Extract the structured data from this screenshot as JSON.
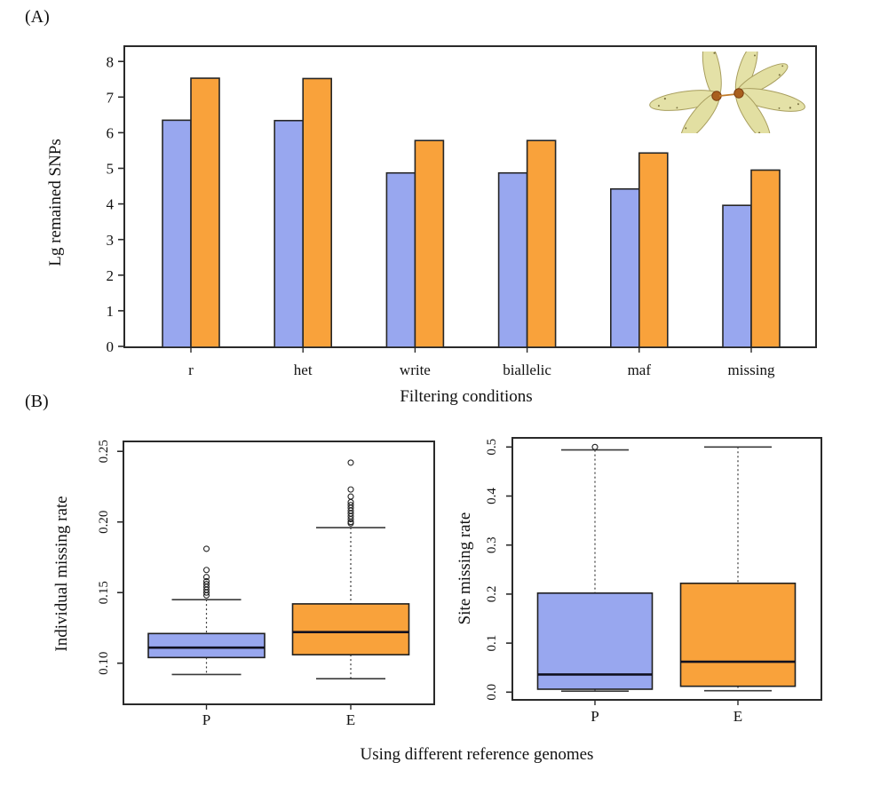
{
  "figure": {
    "panel_a_label": "(A)",
    "panel_b_label": "(B)"
  },
  "colors": {
    "p_series_fill": "#98a7ef",
    "e_series_fill": "#f9a23b",
    "axis_line": "#2a2a2a",
    "text": "#111111"
  },
  "chart_data": [
    {
      "panel": "A",
      "type": "bar",
      "ylabel": "Lg remained SNPs",
      "xlabel": "Filtering conditions",
      "categories": [
        "r",
        "het",
        "write",
        "biallelic",
        "maf",
        "missing"
      ],
      "series": [
        {
          "name": "P",
          "color": "#98a7ef",
          "values": [
            6.35,
            6.34,
            4.87,
            4.87,
            4.42,
            3.96
          ]
        },
        {
          "name": "E",
          "color": "#f9a23b",
          "values": [
            7.53,
            7.52,
            5.78,
            5.78,
            5.43,
            4.95
          ]
        }
      ],
      "ylim": [
        0,
        8.4
      ],
      "yticks": [
        0,
        1,
        2,
        3,
        4,
        5,
        6,
        7,
        8
      ],
      "grid": false,
      "legend": false
    },
    {
      "panel": "B",
      "type": "boxplot",
      "xlabel": "Using different reference genomes",
      "categories": [
        "P",
        "E"
      ],
      "subplots": [
        {
          "ylabel": "Individual missing rate",
          "ytick_labels": [
            "0.10",
            "0.15",
            "0.20",
            "0.25"
          ],
          "ytick_values": [
            0.1,
            0.15,
            0.2,
            0.25
          ],
          "ylim": [
            0.082,
            0.253
          ],
          "boxes": [
            {
              "category": "P",
              "color": "#98a7ef",
              "whisker_low": 0.092,
              "q1": 0.104,
              "median": 0.111,
              "q3": 0.121,
              "whisker_high": 0.145,
              "outliers": [
                0.148,
                0.15,
                0.152,
                0.154,
                0.156,
                0.158,
                0.161,
                0.166,
                0.181
              ]
            },
            {
              "category": "E",
              "color": "#f9a23b",
              "whisker_low": 0.089,
              "q1": 0.106,
              "median": 0.122,
              "q3": 0.142,
              "whisker_high": 0.196,
              "outliers": [
                0.199,
                0.2,
                0.202,
                0.204,
                0.206,
                0.208,
                0.21,
                0.212,
                0.214,
                0.218,
                0.223,
                0.242
              ]
            }
          ]
        },
        {
          "ylabel": "Site missing rate",
          "ytick_labels": [
            "0.0",
            "0.1",
            "0.2",
            "0.3",
            "0.4",
            "0.5"
          ],
          "ytick_values": [
            0.0,
            0.1,
            0.2,
            0.3,
            0.4,
            0.5
          ],
          "ylim": [
            -0.015,
            0.52
          ],
          "boxes": [
            {
              "category": "P",
              "color": "#98a7ef",
              "whisker_low": 0.002,
              "q1": 0.006,
              "median": 0.036,
              "q3": 0.202,
              "whisker_high": 0.494,
              "outliers": [
                0.5
              ]
            },
            {
              "category": "E",
              "color": "#f9a23b",
              "whisker_low": 0.003,
              "q1": 0.012,
              "median": 0.062,
              "q3": 0.222,
              "whisker_high": 0.5,
              "outliers": []
            }
          ]
        }
      ]
    }
  ]
}
